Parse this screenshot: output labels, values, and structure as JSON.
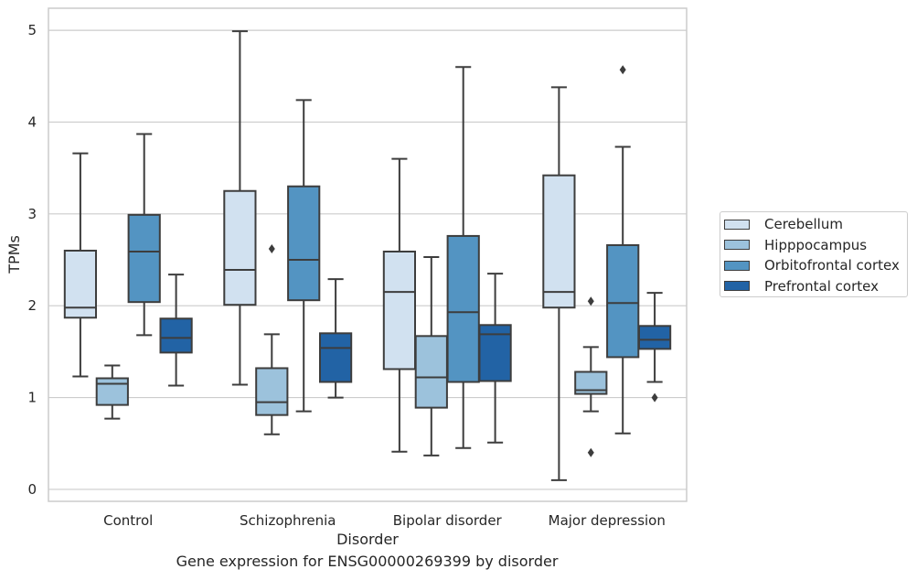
{
  "chart_data": {
    "type": "box",
    "caption": "Gene expression for ENSG00000269399 by disorder",
    "xlabel": "Disorder",
    "ylabel": "TPMs",
    "ylim": [
      -0.13,
      5.24
    ],
    "yticks": [
      0,
      1,
      2,
      3,
      4,
      5
    ],
    "grid": "horizontal",
    "legend_position": "right",
    "categories": [
      "Control",
      "Schizophrenia",
      "Bipolar disorder",
      "Major depression"
    ],
    "series": [
      {
        "name": "Cerebellum",
        "color": "#d1e1f0",
        "boxes": [
          {
            "whisker_low": 1.23,
            "q1": 1.87,
            "median": 1.98,
            "q3": 2.6,
            "whisker_high": 3.66,
            "outliers": []
          },
          {
            "whisker_low": 1.14,
            "q1": 2.01,
            "median": 2.39,
            "q3": 3.25,
            "whisker_high": 4.99,
            "outliers": []
          },
          {
            "whisker_low": 0.41,
            "q1": 1.31,
            "median": 2.15,
            "q3": 2.59,
            "whisker_high": 3.6,
            "outliers": []
          },
          {
            "whisker_low": 0.1,
            "q1": 1.98,
            "median": 2.15,
            "q3": 3.42,
            "whisker_high": 4.38,
            "outliers": []
          }
        ]
      },
      {
        "name": "Hipppocampus",
        "color": "#9cc2dc",
        "boxes": [
          {
            "whisker_low": 0.77,
            "q1": 0.92,
            "median": 1.15,
            "q3": 1.21,
            "whisker_high": 1.35,
            "outliers": []
          },
          {
            "whisker_low": 0.6,
            "q1": 0.81,
            "median": 0.95,
            "q3": 1.32,
            "whisker_high": 1.69,
            "outliers": [
              2.62
            ]
          },
          {
            "whisker_low": 0.37,
            "q1": 0.89,
            "median": 1.22,
            "q3": 1.67,
            "whisker_high": 2.53,
            "outliers": []
          },
          {
            "whisker_low": 0.85,
            "q1": 1.04,
            "median": 1.08,
            "q3": 1.28,
            "whisker_high": 1.55,
            "outliers": [
              2.05,
              0.4
            ]
          }
        ]
      },
      {
        "name": "Orbitofrontal cortex",
        "color": "#5394c2",
        "boxes": [
          {
            "whisker_low": 1.68,
            "q1": 2.04,
            "median": 2.59,
            "q3": 2.99,
            "whisker_high": 3.87,
            "outliers": []
          },
          {
            "whisker_low": 0.85,
            "q1": 2.06,
            "median": 2.5,
            "q3": 3.3,
            "whisker_high": 4.24,
            "outliers": []
          },
          {
            "whisker_low": 0.45,
            "q1": 1.17,
            "median": 1.93,
            "q3": 2.76,
            "whisker_high": 4.6,
            "outliers": []
          },
          {
            "whisker_low": 0.61,
            "q1": 1.44,
            "median": 2.03,
            "q3": 2.66,
            "whisker_high": 3.73,
            "outliers": [
              4.57
            ]
          }
        ]
      },
      {
        "name": "Prefrontal cortex",
        "color": "#2263a5",
        "boxes": [
          {
            "whisker_low": 1.13,
            "q1": 1.49,
            "median": 1.65,
            "q3": 1.86,
            "whisker_high": 2.34,
            "outliers": []
          },
          {
            "whisker_low": 1.0,
            "q1": 1.17,
            "median": 1.54,
            "q3": 1.7,
            "whisker_high": 2.29,
            "outliers": []
          },
          {
            "whisker_low": 0.51,
            "q1": 1.18,
            "median": 1.69,
            "q3": 1.79,
            "whisker_high": 2.35,
            "outliers": []
          },
          {
            "whisker_low": 1.17,
            "q1": 1.53,
            "median": 1.63,
            "q3": 1.78,
            "whisker_high": 2.14,
            "outliers": [
              1.0
            ]
          }
        ]
      }
    ]
  }
}
